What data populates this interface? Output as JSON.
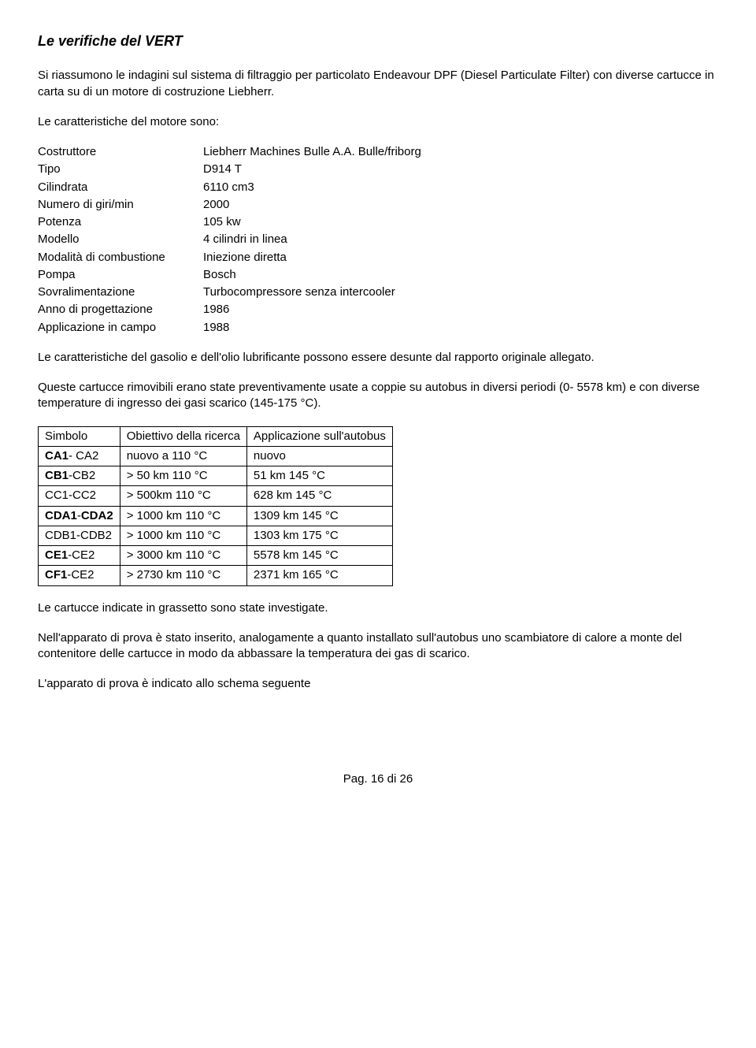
{
  "title": "Le verifiche del VERT",
  "intro": "Si riassumono le indagini sul sistema di filtraggio  per particolato Endeavour DPF (Diesel Particulate Filter) con diverse cartucce in carta su di un motore di costruzione Liebherr.",
  "specs_intro": "Le caratteristiche del motore sono:",
  "specs": [
    {
      "label": "Costruttore",
      "value": "Liebherr Machines Bulle A.A. Bulle/friborg"
    },
    {
      "label": "Tipo",
      "value": "D914 T"
    },
    {
      "label": "Cilindrata",
      "value": "6110 cm3"
    },
    {
      "label": "Numero di giri/min",
      "value": "2000"
    },
    {
      "label": "Potenza",
      "value": "105 kw"
    },
    {
      "label": "Modello",
      "value": "4 cilindri in linea"
    },
    {
      "label": "Modalità di combustione",
      "value": "Iniezione diretta"
    },
    {
      "label": "Pompa",
      "value": "Bosch"
    },
    {
      "label": "Sovralimentazione",
      "value": "Turbocompressore senza intercooler"
    },
    {
      "label": "Anno di progettazione",
      "value": "1986"
    },
    {
      "label": "Applicazione in campo",
      "value": "1988"
    }
  ],
  "para_gasolio": "Le caratteristiche del gasolio e dell'olio lubrificante possono essere desunte dal rapporto originale allegato.",
  "para_cartucce": "Queste cartucce rimovibili erano state preventivamente usate a coppie su autobus in diversi periodi (0- 5578 km) e con diverse temperature di ingresso dei gasi scarico (145-175 °C).",
  "table": {
    "headers": [
      "Simbolo",
      "Obiettivo della ricerca",
      "Applicazione sull'autobus"
    ],
    "rows": [
      {
        "c0": "CA1- CA2",
        "c0_html": "<span class=\"bold\">CA1</span>- CA2",
        "c1": "nuovo a 110 °C",
        "c2": "nuovo"
      },
      {
        "c0": "CB1-CB2",
        "c0_html": "<span class=\"bold\">CB1</span>-CB2",
        "c1": "> 50 km 110 °C",
        "c2": "51 km 145 °C"
      },
      {
        "c0": "CC1-CC2",
        "c0_html": "CC1-CC2",
        "c1": "> 500km 110 °C",
        "c2": "628 km 145 °C"
      },
      {
        "c0": "CDA1-CDA2",
        "c0_html": "<span class=\"bold\">CDA1</span>-<span class=\"bold\">CDA2</span>",
        "c1": "> 1000  km 110 °C",
        "c2": "1309 km 145 °C"
      },
      {
        "c0": "CDB1-CDB2",
        "c0_html": "CDB1-CDB2",
        "c1": "> 1000 km 110 °C",
        "c2": "1303 km 175 °C"
      },
      {
        "c0": "CE1-CE2",
        "c0_html": "<span class=\"bold\">CE1</span>-CE2",
        "c1": "> 3000 km 110 °C",
        "c2": "5578 km 145 °C"
      },
      {
        "c0": "CF1-CE2",
        "c0_html": "<span class=\"bold\">CF1</span>-CE2",
        "c1": "> 2730 km 110 °C",
        "c2": "2371 km 165 °C"
      }
    ]
  },
  "para_investigate": "Le cartucce indicate in grassetto sono state investigate.",
  "para_apparato": "Nell'apparato di prova è stato inserito, analogamente a quanto installato sull'autobus uno scambiatore di calore a monte del contenitore delle cartucce in modo da abbassare la temperatura dei gas di scarico.",
  "para_schema": "L'apparato di prova è indicato allo schema seguente",
  "footer": "Pag. 16 di 26"
}
